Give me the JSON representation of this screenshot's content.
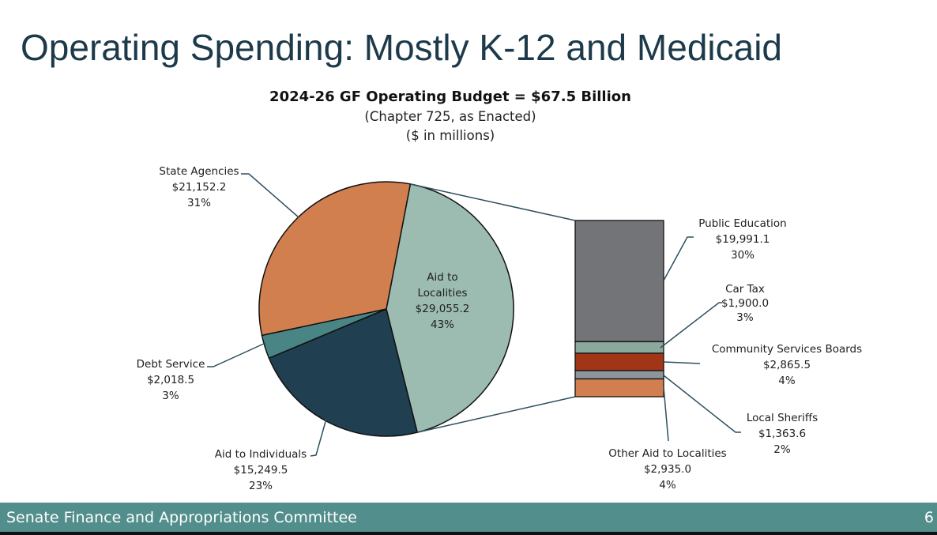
{
  "slide": {
    "title": "Operating Spending: Mostly K-12 and Medicaid",
    "page_number": "6",
    "footer": "Senate Finance and Appropriations Committee"
  },
  "colors": {
    "title": "#1d3a4b",
    "footer_bg": "#528e8c",
    "leader_line": "#2f4f5f"
  },
  "chart_data": [
    {
      "type": "pie",
      "title": "2024-26 GF Operating Budget = $67.5 Billion",
      "subtitle": [
        "(Chapter 725, as Enacted)",
        "($ in millions)"
      ],
      "unit": "$ in millions",
      "total_label": "$67.5 Billion",
      "slices": [
        {
          "name": "Aid to Localities",
          "value": 29055.2,
          "value_label": "$29,055.2",
          "percent_label": "43%",
          "color": "#9dbcb1",
          "label_lines": [
            "Aid to",
            "Localities"
          ],
          "exploded_to": "breakdown"
        },
        {
          "name": "Aid to Individuals",
          "value": 15249.5,
          "value_label": "$15,249.5",
          "percent_label": "23%",
          "color": "#203f51",
          "label_lines": [
            "Aid to Individuals"
          ]
        },
        {
          "name": "Debt Service",
          "value": 2018.5,
          "value_label": "$2,018.5",
          "percent_label": "3%",
          "color": "#4a8585",
          "label_lines": [
            "Debt Service"
          ]
        },
        {
          "name": "State Agencies",
          "value": 21152.2,
          "value_label": "$21,152.2",
          "percent_label": "31%",
          "color": "#d27f50",
          "label_lines": [
            "State Agencies"
          ]
        }
      ]
    },
    {
      "type": "bar",
      "stacked": true,
      "title": "Aid to Localities breakdown",
      "unit": "$ in millions",
      "segments": [
        {
          "name": "Public Education",
          "value": 19991.1,
          "value_label": "$19,991.1",
          "percent_label": "30%",
          "color": "#737478"
        },
        {
          "name": "Car Tax",
          "value": 1900.0,
          "value_label": "$1,900.0",
          "percent_label": "3%",
          "color": "#8aa89c"
        },
        {
          "name": "Community Services Boards",
          "value": 2865.5,
          "value_label": "$2,865.5",
          "percent_label": "4%",
          "color": "#a13515"
        },
        {
          "name": "Local Sheriffs",
          "value": 1363.6,
          "value_label": "$1,363.6",
          "percent_label": "2%",
          "color": "#8b959b"
        },
        {
          "name": "Other Aid to Localities",
          "value": 2935.0,
          "value_label": "$2,935.0",
          "percent_label": "4%",
          "color": "#d27f50"
        }
      ]
    }
  ]
}
